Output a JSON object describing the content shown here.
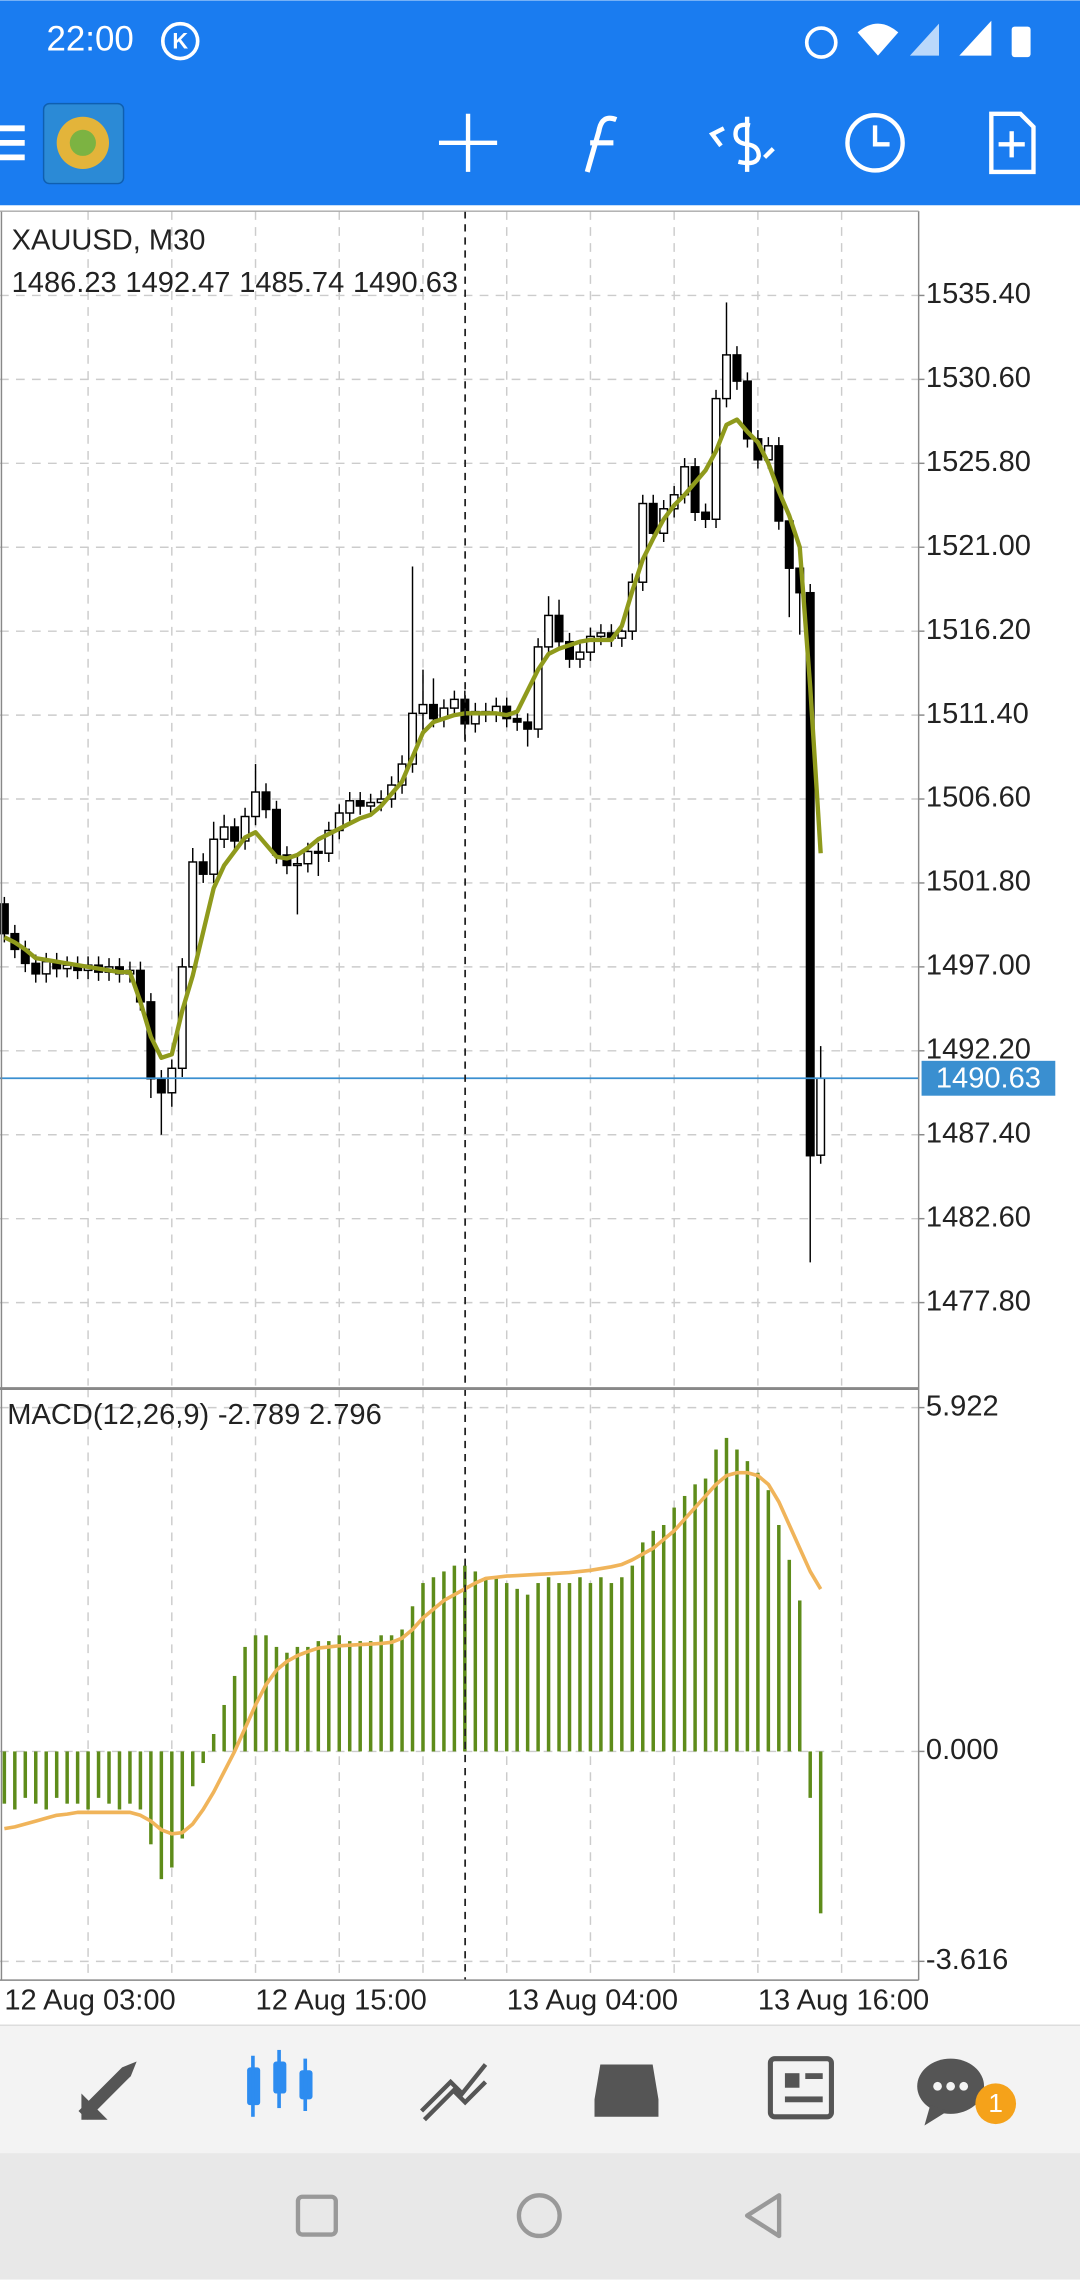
{
  "status_bar": {
    "time": "22:00",
    "carrier_badge": "K"
  },
  "bottom_nav": {
    "chat_badge": "1"
  },
  "chart_data": [
    {
      "type": "candlestick",
      "title": "XAUUSD, M30",
      "ylim": [
        1473.05,
        1540.22
      ],
      "yticks": [
        {
          "value": 1535.4,
          "label": "1535.40"
        },
        {
          "value": 1530.6,
          "label": "1530.60"
        },
        {
          "value": 1525.8,
          "label": "1525.80"
        },
        {
          "value": 1521,
          "label": "1521.00"
        },
        {
          "value": 1516.2,
          "label": "1516.20"
        },
        {
          "value": 1511.4,
          "label": "1511.40"
        },
        {
          "value": 1506.6,
          "label": "1506.60"
        },
        {
          "value": 1501.8,
          "label": "1501.80"
        },
        {
          "value": 1497,
          "label": "1497.00"
        },
        {
          "value": 1492.2,
          "label": "1492.20"
        },
        {
          "value": 1487.4,
          "label": "1487.40"
        },
        {
          "value": 1482.6,
          "label": "1482.60"
        },
        {
          "value": 1477.8,
          "label": "1477.80"
        }
      ],
      "grid": true,
      "up_color": "#ffffff",
      "down_color": "#000000",
      "price_line_color": "#3a8fd0",
      "candles": [
        [
          1500.6,
          1501.0,
          1498.4,
          1498.9
        ],
        [
          1498.9,
          1499.4,
          1497.5,
          1498.0
        ],
        [
          1498.0,
          1498.5,
          1496.7,
          1497.2
        ],
        [
          1497.2,
          1497.7,
          1496.1,
          1496.6
        ],
        [
          1496.6,
          1497.8,
          1496.1,
          1497.3
        ],
        [
          1497.3,
          1497.8,
          1496.4,
          1496.9
        ],
        [
          1496.9,
          1497.6,
          1496.4,
          1497.1
        ],
        [
          1497.1,
          1497.6,
          1496.3,
          1496.8
        ],
        [
          1496.8,
          1497.6,
          1496.3,
          1497.1
        ],
        [
          1497.1,
          1497.6,
          1496.2,
          1496.7
        ],
        [
          1496.7,
          1497.5,
          1496.2,
          1497.0
        ],
        [
          1497.0,
          1497.5,
          1496.1,
          1496.6
        ],
        [
          1496.6,
          1497.3,
          1496.1,
          1496.8
        ],
        [
          1496.8,
          1497.3,
          1494.5,
          1495.0
        ],
        [
          1495.0,
          1495.5,
          1489.5,
          1490.6
        ],
        [
          1490.6,
          1491.1,
          1487.4,
          1489.8
        ],
        [
          1489.8,
          1491.7,
          1489.0,
          1491.2
        ],
        [
          1491.2,
          1497.5,
          1490.7,
          1497.0
        ],
        [
          1497.0,
          1503.8,
          1496.5,
          1503.0
        ],
        [
          1503.0,
          1503.5,
          1501.8,
          1502.3
        ],
        [
          1502.3,
          1505.3,
          1501.8,
          1504.3
        ],
        [
          1504.3,
          1505.7,
          1503.8,
          1505.0
        ],
        [
          1505.0,
          1505.5,
          1503.7,
          1504.2
        ],
        [
          1504.2,
          1506.1,
          1503.7,
          1505.6
        ],
        [
          1505.6,
          1508.6,
          1505.1,
          1507.0
        ],
        [
          1507.0,
          1507.5,
          1505.5,
          1506.0
        ],
        [
          1506.0,
          1506.5,
          1502.9,
          1503.4
        ],
        [
          1503.4,
          1503.9,
          1502.3,
          1502.8
        ],
        [
          1502.8,
          1503.4,
          1500.0,
          1502.9
        ],
        [
          1502.9,
          1504.1,
          1502.4,
          1503.6
        ],
        [
          1503.6,
          1504.1,
          1502.2,
          1503.5
        ],
        [
          1503.5,
          1505.3,
          1503.0,
          1504.8
        ],
        [
          1504.8,
          1506.3,
          1504.3,
          1505.8
        ],
        [
          1505.8,
          1507.0,
          1505.3,
          1506.5
        ],
        [
          1506.5,
          1507.0,
          1505.7,
          1506.2
        ],
        [
          1506.2,
          1506.9,
          1505.7,
          1506.4
        ],
        [
          1506.4,
          1507.1,
          1505.9,
          1506.6
        ],
        [
          1506.6,
          1507.9,
          1506.1,
          1507.4
        ],
        [
          1507.4,
          1509.1,
          1506.9,
          1508.6
        ],
        [
          1508.6,
          1519.9,
          1508.1,
          1511.5
        ],
        [
          1511.5,
          1514.0,
          1510.5,
          1512.0
        ],
        [
          1512.0,
          1513.5,
          1510.7,
          1511.2
        ],
        [
          1511.2,
          1512.3,
          1510.7,
          1511.8
        ],
        [
          1511.8,
          1512.8,
          1511.3,
          1512.3
        ],
        [
          1512.3,
          1512.8,
          1510.0,
          1510.9
        ],
        [
          1510.9,
          1512.1,
          1510.4,
          1511.6
        ],
        [
          1511.6,
          1512.1,
          1511.0,
          1511.5
        ],
        [
          1511.5,
          1512.4,
          1511.0,
          1511.9
        ],
        [
          1511.9,
          1512.4,
          1510.7,
          1511.2
        ],
        [
          1511.2,
          1511.7,
          1510.5,
          1511.0
        ],
        [
          1511.0,
          1511.5,
          1509.6,
          1510.6
        ],
        [
          1510.6,
          1515.8,
          1510.1,
          1515.3
        ],
        [
          1515.3,
          1518.2,
          1514.8,
          1517.1
        ],
        [
          1517.1,
          1518.0,
          1515.1,
          1515.6
        ],
        [
          1515.6,
          1516.1,
          1514.1,
          1514.6
        ],
        [
          1514.6,
          1515.5,
          1514.1,
          1515.0
        ],
        [
          1515.0,
          1516.4,
          1514.5,
          1515.9
        ],
        [
          1515.9,
          1516.6,
          1515.4,
          1516.1
        ],
        [
          1516.1,
          1516.6,
          1515.3,
          1515.8
        ],
        [
          1515.8,
          1516.7,
          1515.3,
          1516.2
        ],
        [
          1516.2,
          1519.5,
          1515.7,
          1519.0
        ],
        [
          1519.0,
          1524.0,
          1518.5,
          1523.5
        ],
        [
          1523.5,
          1524.0,
          1521.3,
          1521.8
        ],
        [
          1521.8,
          1523.7,
          1521.3,
          1523.2
        ],
        [
          1523.2,
          1524.5,
          1522.7,
          1524.0
        ],
        [
          1524.0,
          1526.1,
          1523.5,
          1525.6
        ],
        [
          1525.6,
          1526.1,
          1522.5,
          1523.0
        ],
        [
          1523.0,
          1523.5,
          1522.1,
          1522.6
        ],
        [
          1522.6,
          1530.0,
          1522.1,
          1529.5
        ],
        [
          1529.5,
          1535.0,
          1529.0,
          1532.0
        ],
        [
          1532.0,
          1532.5,
          1530.0,
          1530.5
        ],
        [
          1530.5,
          1531.0,
          1526.7,
          1527.2
        ],
        [
          1527.2,
          1527.7,
          1525.5,
          1526.0
        ],
        [
          1526.0,
          1527.3,
          1525.5,
          1526.8
        ],
        [
          1526.8,
          1527.3,
          1522.0,
          1522.5
        ],
        [
          1522.5,
          1523.0,
          1517.0,
          1519.8
        ],
        [
          1519.8,
          1520.3,
          1516.0,
          1518.4
        ],
        [
          1518.4,
          1518.9,
          1480.1,
          1486.2
        ],
        [
          1486.23,
          1492.47,
          1485.74,
          1490.63
        ]
      ],
      "ma": {
        "color": "#8f9a1c",
        "values": [
          1498.7,
          1498.4,
          1498.0,
          1497.5,
          1497.4,
          1497.3,
          1497.2,
          1497.1,
          1497.0,
          1496.9,
          1496.8,
          1496.7,
          1496.7,
          1495.0,
          1493.0,
          1491.8,
          1492.0,
          1494.5,
          1496.5,
          1499.0,
          1501.5,
          1502.8,
          1503.6,
          1504.4,
          1504.7,
          1504.0,
          1503.3,
          1503.2,
          1503.4,
          1503.8,
          1504.3,
          1504.6,
          1504.9,
          1505.2,
          1505.5,
          1505.7,
          1506.2,
          1506.9,
          1507.6,
          1509.0,
          1510.4,
          1511.0,
          1511.2,
          1511.4,
          1511.5,
          1511.5,
          1511.5,
          1511.5,
          1511.4,
          1511.6,
          1512.8,
          1514.0,
          1514.9,
          1515.2,
          1515.4,
          1515.6,
          1515.7,
          1515.7,
          1515.7,
          1516.5,
          1518.5,
          1520.3,
          1521.5,
          1522.6,
          1523.4,
          1524.0,
          1524.7,
          1525.4,
          1526.5,
          1528.0,
          1528.3,
          1527.6,
          1527.0,
          1525.8,
          1524.2,
          1522.8,
          1521.0,
          1513.0,
          1503.5
        ]
      }
    },
    {
      "type": "macd",
      "title": "MACD(12,26,9)",
      "ylim": [
        -3.94,
        6.25
      ],
      "yticks": [
        5.922,
        {
          "value": 0,
          "label": "0.000"
        },
        -3.616
      ],
      "categories": [
        "12 Aug 03:00",
        null,
        null,
        null,
        null,
        null,
        null,
        null,
        null,
        null,
        null,
        null,
        null,
        null,
        null,
        null,
        null,
        null,
        null,
        null,
        null,
        null,
        null,
        null,
        "12 Aug 15:00",
        null,
        null,
        null,
        null,
        null,
        null,
        null,
        null,
        null,
        null,
        null,
        null,
        null,
        null,
        null,
        null,
        null,
        null,
        null,
        null,
        null,
        null,
        null,
        "13 Aug 04:00",
        null,
        null,
        null,
        null,
        null,
        null,
        null,
        null,
        null,
        null,
        null,
        null,
        null,
        null,
        null,
        null,
        null,
        null,
        null,
        null,
        null,
        null,
        null,
        "13 Aug 16:00",
        null,
        null,
        null,
        null,
        null,
        null
      ],
      "series": [
        {
          "type": "bar",
          "color": "#5e8c1a",
          "values": [
            -0.9,
            -1.0,
            -0.8,
            -0.9,
            -1.0,
            -0.8,
            -0.9,
            -0.9,
            -1.0,
            -0.8,
            -0.9,
            -1.0,
            -0.9,
            -1.0,
            -1.6,
            -2.2,
            -2.0,
            -1.5,
            -0.6,
            -0.2,
            0.3,
            0.8,
            1.3,
            1.8,
            2.0,
            2.0,
            1.8,
            1.7,
            1.8,
            1.8,
            1.9,
            1.9,
            2.0,
            1.9,
            1.9,
            1.9,
            2.0,
            2.0,
            2.1,
            2.5,
            2.9,
            3.0,
            3.1,
            3.2,
            3.2,
            3.1,
            3.0,
            3.0,
            2.9,
            2.8,
            2.7,
            2.9,
            3.0,
            2.9,
            2.9,
            3.0,
            2.9,
            3.0,
            2.9,
            3.0,
            3.2,
            3.6,
            3.8,
            3.9,
            4.2,
            4.4,
            4.6,
            4.7,
            5.2,
            5.4,
            5.2,
            5.0,
            4.8,
            4.5,
            3.9,
            3.3,
            2.6,
            -0.8,
            -2.789
          ]
        },
        {
          "type": "line",
          "color": "#f0b45a",
          "values": [
            -1.33,
            -1.3,
            -1.25,
            -1.2,
            -1.15,
            -1.1,
            -1.08,
            -1.05,
            -1.05,
            -1.05,
            -1.05,
            -1.05,
            -1.05,
            -1.1,
            -1.2,
            -1.35,
            -1.42,
            -1.4,
            -1.25,
            -1.0,
            -0.7,
            -0.35,
            0.0,
            0.4,
            0.8,
            1.15,
            1.4,
            1.55,
            1.65,
            1.72,
            1.78,
            1.8,
            1.82,
            1.83,
            1.84,
            1.85,
            1.86,
            1.88,
            1.95,
            2.1,
            2.3,
            2.45,
            2.6,
            2.7,
            2.8,
            2.9,
            2.98,
            3.0,
            3.02,
            3.03,
            3.04,
            3.05,
            3.06,
            3.07,
            3.08,
            3.1,
            3.12,
            3.15,
            3.18,
            3.22,
            3.3,
            3.4,
            3.5,
            3.65,
            3.8,
            4.0,
            4.2,
            4.4,
            4.6,
            4.75,
            4.8,
            4.8,
            4.75,
            4.6,
            4.3,
            3.9,
            3.5,
            3.1,
            2.796
          ]
        }
      ]
    }
  ]
}
